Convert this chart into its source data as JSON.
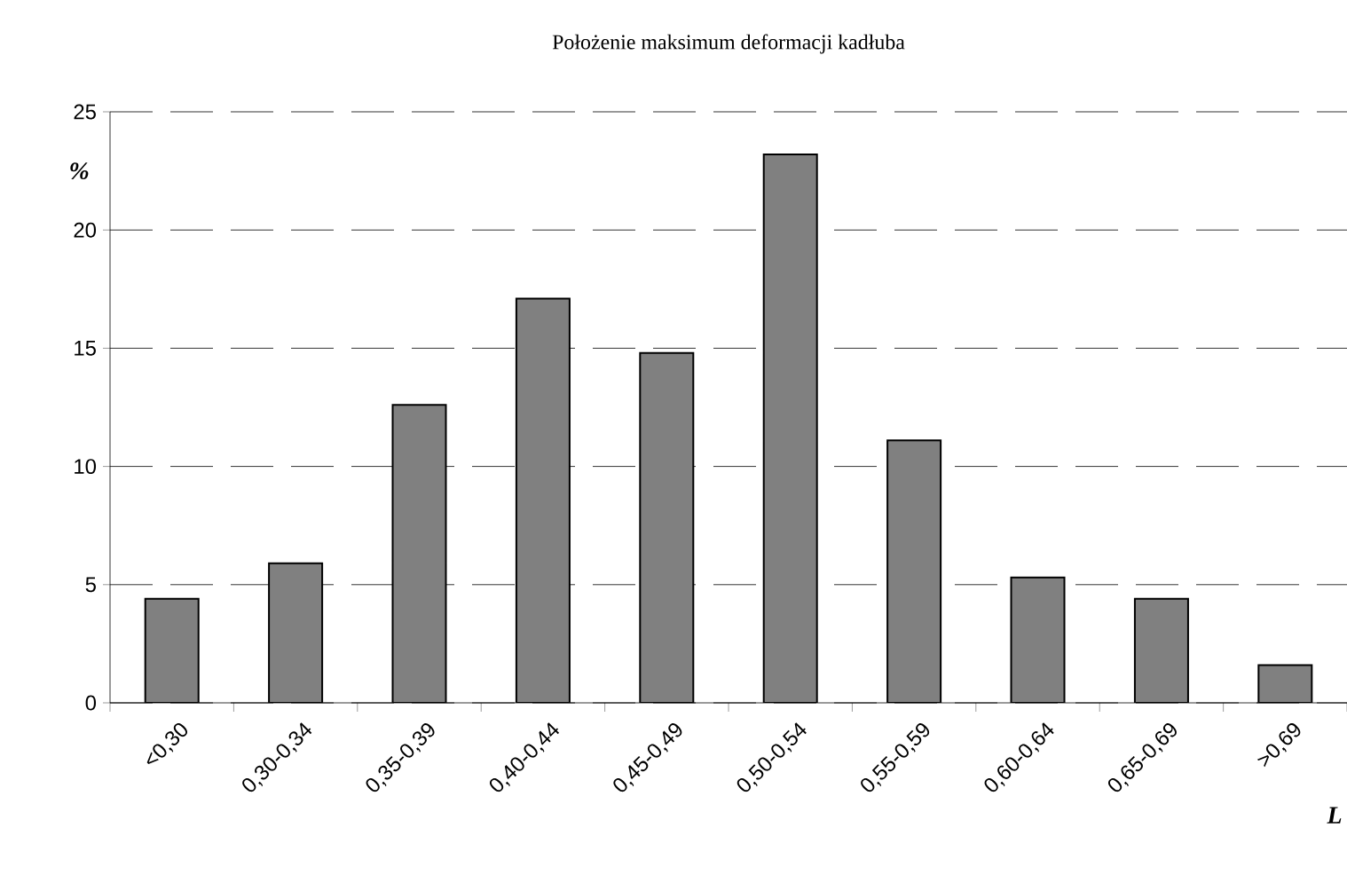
{
  "chart_data": {
    "type": "bar",
    "title": "Położenie maksimum deformacji kadłuba",
    "xlabel": "L",
    "ylabel": "%",
    "categories": [
      "<0,30",
      "0,30-0,34",
      "0,35-0,39",
      "0,40-0,44",
      "0,45-0,49",
      "0,50-0,54",
      "0,55-0,59",
      "0,60-0,64",
      "0,65-0,69",
      ">0,69"
    ],
    "values": [
      4.4,
      5.9,
      12.6,
      17.1,
      14.8,
      23.2,
      11.1,
      5.3,
      4.4,
      1.6
    ],
    "color": "#808080",
    "ylim": [
      0,
      25
    ],
    "yticks": [
      0,
      5,
      10,
      15,
      20,
      25
    ],
    "grid": "y"
  }
}
